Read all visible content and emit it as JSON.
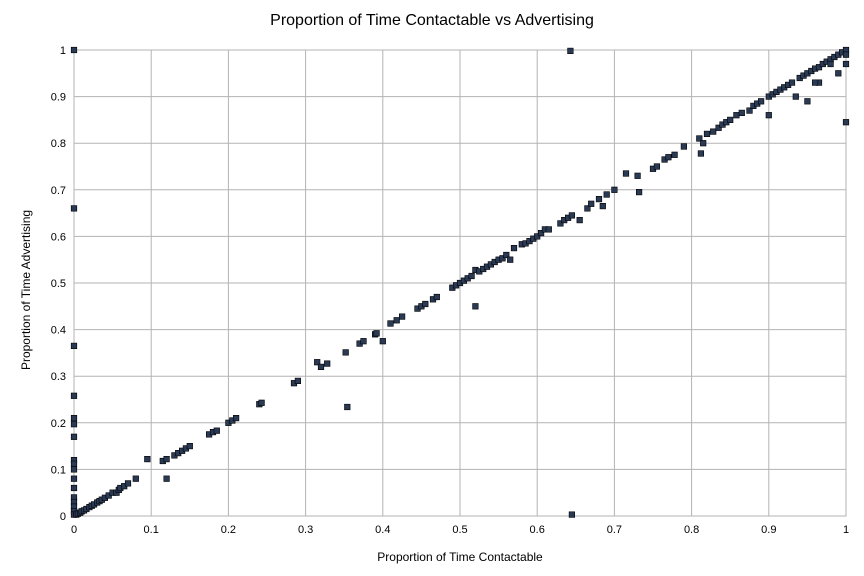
{
  "chart_data": {
    "type": "scatter",
    "title": "Proportion of Time Contactable vs Advertising",
    "xlabel": "Proportion of Time Contactable",
    "ylabel": "Proportion of Time Advertising",
    "xlim": [
      0,
      1
    ],
    "ylim": [
      0,
      1
    ],
    "x_ticks": [
      "0",
      "0.1",
      "0.2",
      "0.3",
      "0.4",
      "0.5",
      "0.6",
      "0.7",
      "0.8",
      "0.9",
      "1"
    ],
    "y_ticks": [
      "0",
      "0.1",
      "0.2",
      "0.3",
      "0.4",
      "0.5",
      "0.6",
      "0.7",
      "0.8",
      "0.9",
      "1"
    ],
    "grid": true,
    "legend": "none",
    "marker_color": "#2a3a55",
    "series": [
      {
        "points": [
          [
            0,
            1
          ],
          [
            0,
            0.66
          ],
          [
            0,
            0.365
          ],
          [
            0,
            0.258
          ],
          [
            0,
            0.21
          ],
          [
            0,
            0.197
          ],
          [
            0,
            0.17
          ],
          [
            0,
            0.12
          ],
          [
            0,
            0.112
          ],
          [
            0,
            0.1
          ],
          [
            0,
            0.08
          ],
          [
            0,
            0.06
          ],
          [
            0,
            0.04
          ],
          [
            0,
            0.03
          ],
          [
            0,
            0.02
          ],
          [
            0,
            0.01
          ],
          [
            0,
            0.003
          ],
          [
            0.003,
            0.003
          ],
          [
            0.005,
            0.005
          ],
          [
            0.008,
            0.007
          ],
          [
            0.01,
            0.01
          ],
          [
            0.013,
            0.012
          ],
          [
            0.016,
            0.015
          ],
          [
            0.02,
            0.019
          ],
          [
            0.023,
            0.022
          ],
          [
            0.026,
            0.025
          ],
          [
            0.03,
            0.029
          ],
          [
            0.033,
            0.032
          ],
          [
            0.036,
            0.035
          ],
          [
            0.04,
            0.039
          ],
          [
            0.045,
            0.044
          ],
          [
            0.05,
            0.05
          ],
          [
            0.055,
            0.05
          ],
          [
            0.058,
            0.056
          ],
          [
            0.06,
            0.06
          ],
          [
            0.065,
            0.064
          ],
          [
            0.07,
            0.07
          ],
          [
            0.08,
            0.08
          ],
          [
            0.095,
            0.122
          ],
          [
            0.115,
            0.118
          ],
          [
            0.12,
            0.08
          ],
          [
            0.12,
            0.122
          ],
          [
            0.13,
            0.13
          ],
          [
            0.135,
            0.135
          ],
          [
            0.14,
            0.14
          ],
          [
            0.145,
            0.145
          ],
          [
            0.15,
            0.15
          ],
          [
            0.175,
            0.175
          ],
          [
            0.18,
            0.18
          ],
          [
            0.185,
            0.183
          ],
          [
            0.2,
            0.2
          ],
          [
            0.205,
            0.205
          ],
          [
            0.21,
            0.21
          ],
          [
            0.24,
            0.24
          ],
          [
            0.243,
            0.243
          ],
          [
            0.285,
            0.285
          ],
          [
            0.29,
            0.29
          ],
          [
            0.315,
            0.33
          ],
          [
            0.32,
            0.32
          ],
          [
            0.328,
            0.327
          ],
          [
            0.352,
            0.351
          ],
          [
            0.354,
            0.234
          ],
          [
            0.37,
            0.37
          ],
          [
            0.375,
            0.375
          ],
          [
            0.39,
            0.39
          ],
          [
            0.392,
            0.392
          ],
          [
            0.4,
            0.375
          ],
          [
            0.41,
            0.413
          ],
          [
            0.418,
            0.42
          ],
          [
            0.425,
            0.428
          ],
          [
            0.445,
            0.445
          ],
          [
            0.45,
            0.45
          ],
          [
            0.455,
            0.455
          ],
          [
            0.465,
            0.465
          ],
          [
            0.47,
            0.47
          ],
          [
            0.49,
            0.49
          ],
          [
            0.495,
            0.495
          ],
          [
            0.5,
            0.5
          ],
          [
            0.505,
            0.505
          ],
          [
            0.51,
            0.51
          ],
          [
            0.515,
            0.515
          ],
          [
            0.52,
            0.45
          ],
          [
            0.52,
            0.528
          ],
          [
            0.525,
            0.525
          ],
          [
            0.53,
            0.53
          ],
          [
            0.535,
            0.535
          ],
          [
            0.54,
            0.54
          ],
          [
            0.545,
            0.545
          ],
          [
            0.55,
            0.55
          ],
          [
            0.555,
            0.553
          ],
          [
            0.56,
            0.56
          ],
          [
            0.565,
            0.55
          ],
          [
            0.57,
            0.575
          ],
          [
            0.58,
            0.583
          ],
          [
            0.585,
            0.585
          ],
          [
            0.59,
            0.59
          ],
          [
            0.595,
            0.595
          ],
          [
            0.6,
            0.6
          ],
          [
            0.605,
            0.607
          ],
          [
            0.61,
            0.615
          ],
          [
            0.615,
            0.615
          ],
          [
            0.63,
            0.628
          ],
          [
            0.635,
            0.635
          ],
          [
            0.64,
            0.64
          ],
          [
            0.645,
            0.645
          ],
          [
            0.643,
            0.998
          ],
          [
            0.645,
            0.003
          ],
          [
            0.655,
            0.635
          ],
          [
            0.665,
            0.66
          ],
          [
            0.67,
            0.67
          ],
          [
            0.68,
            0.68
          ],
          [
            0.685,
            0.665
          ],
          [
            0.69,
            0.69
          ],
          [
            0.7,
            0.7
          ],
          [
            0.715,
            0.735
          ],
          [
            0.73,
            0.73
          ],
          [
            0.732,
            0.695
          ],
          [
            0.75,
            0.745
          ],
          [
            0.755,
            0.75
          ],
          [
            0.765,
            0.765
          ],
          [
            0.77,
            0.77
          ],
          [
            0.778,
            0.775
          ],
          [
            0.79,
            0.793
          ],
          [
            0.81,
            0.81
          ],
          [
            0.812,
            0.778
          ],
          [
            0.815,
            0.8
          ],
          [
            0.82,
            0.82
          ],
          [
            0.828,
            0.825
          ],
          [
            0.835,
            0.833
          ],
          [
            0.84,
            0.84
          ],
          [
            0.845,
            0.845
          ],
          [
            0.85,
            0.85
          ],
          [
            0.858,
            0.86
          ],
          [
            0.865,
            0.865
          ],
          [
            0.875,
            0.87
          ],
          [
            0.88,
            0.88
          ],
          [
            0.885,
            0.885
          ],
          [
            0.89,
            0.89
          ],
          [
            0.9,
            0.9
          ],
          [
            0.905,
            0.905
          ],
          [
            0.91,
            0.91
          ],
          [
            0.9,
            0.86
          ],
          [
            0.915,
            0.915
          ],
          [
            0.92,
            0.92
          ],
          [
            0.925,
            0.925
          ],
          [
            0.93,
            0.93
          ],
          [
            0.935,
            0.9
          ],
          [
            0.94,
            0.94
          ],
          [
            0.945,
            0.945
          ],
          [
            0.95,
            0.95
          ],
          [
            0.955,
            0.955
          ],
          [
            0.96,
            0.96
          ],
          [
            0.965,
            0.93
          ],
          [
            0.965,
            0.963
          ],
          [
            0.97,
            0.97
          ],
          [
            0.975,
            0.975
          ],
          [
            0.98,
            0.98
          ],
          [
            0.985,
            0.985
          ],
          [
            0.99,
            0.99
          ],
          [
            0.995,
            0.995
          ],
          [
            1,
            1
          ],
          [
            1,
            0.99
          ],
          [
            1,
            0.97
          ],
          [
            0.99,
            0.95
          ],
          [
            1,
            0.845
          ],
          [
            0.98,
            0.97
          ],
          [
            0.96,
            0.93
          ],
          [
            0.95,
            0.89
          ]
        ]
      }
    ]
  }
}
